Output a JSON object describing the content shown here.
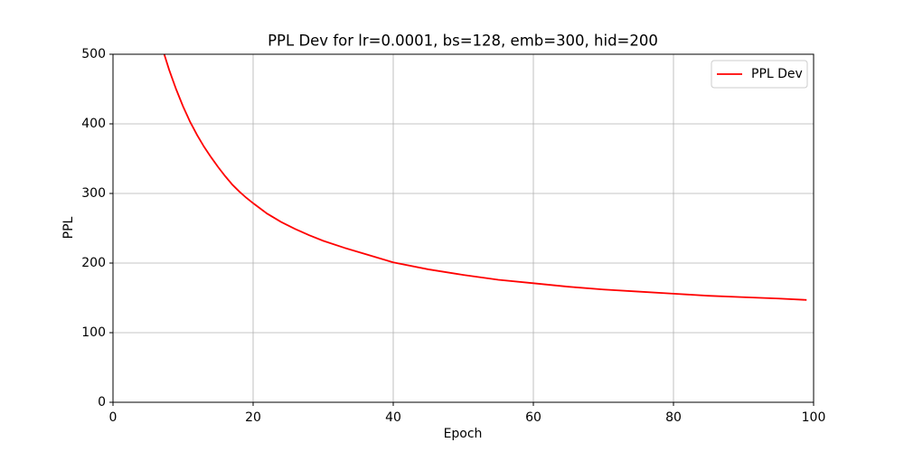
{
  "chart_data": {
    "type": "line",
    "title": "PPL Dev for lr=0.0001, bs=128, emb=300, hid=200",
    "x_label": "Epoch",
    "y_label": "PPL",
    "x": [
      7,
      8,
      9,
      10,
      11,
      12,
      13,
      14,
      15,
      16,
      17,
      18,
      19,
      20,
      22,
      24,
      26,
      28,
      30,
      33,
      36,
      40,
      45,
      50,
      55,
      60,
      65,
      70,
      75,
      80,
      85,
      90,
      95,
      99
    ],
    "series": [
      {
        "name": "PPL Dev",
        "color": "#ff0000",
        "values": [
          510,
          478,
          450,
          425,
          403,
          384,
          367,
          352,
          338,
          325,
          313,
          303,
          294,
          286,
          271,
          259,
          249,
          240,
          232,
          222,
          213,
          201,
          191,
          183,
          176,
          171,
          166,
          162,
          159,
          156,
          153,
          151,
          149,
          147
        ]
      }
    ],
    "xlim": [
      0,
      100
    ],
    "xticks": [
      0,
      20,
      40,
      60,
      80,
      100
    ],
    "ylim": [
      0,
      500
    ],
    "yticks": [
      0,
      100,
      200,
      300,
      400,
      500
    ],
    "grid": true,
    "legend": "upper right"
  }
}
